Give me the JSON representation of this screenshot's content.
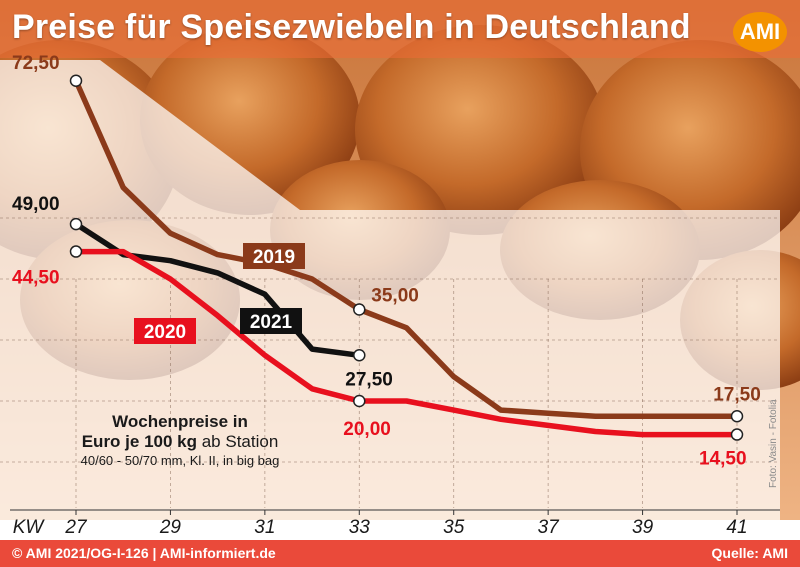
{
  "header": {
    "title": "Preise für Speisezwiebeln in Deutschland",
    "logo": "AMI"
  },
  "legend_box": {
    "line1": "Wochenpreise in",
    "line2_bold": "Euro je 100 kg",
    "line2_rest": " ab Station",
    "line3": "40/60 - 50/70 mm, Kl. II, in big bag"
  },
  "photo_credit": "Foto: Vasin - Fotolia",
  "footer": {
    "left": "© AMI 2021/OG-I-126 | AMI-informiert.de",
    "right": "Quelle: AMI"
  },
  "colors": {
    "series_2019": "#8b3a1a",
    "series_2020": "#e8101e",
    "series_2021": "#111111",
    "background_top": "#f0844d",
    "accent_footer": "#ea4a3a",
    "logo": "#f39200"
  },
  "chart_data": {
    "type": "line",
    "xlabel": "KW",
    "x_ticks": [
      "27",
      "29",
      "31",
      "33",
      "35",
      "37",
      "39",
      "41"
    ],
    "xlim": [
      27,
      41
    ],
    "ylim": [
      0,
      80
    ],
    "grid": true,
    "series": [
      {
        "name": "2019",
        "color": "#8b3a1a",
        "x": [
          27,
          28,
          29,
          30,
          31,
          32,
          33,
          34,
          35,
          36,
          37,
          38,
          39,
          40,
          41
        ],
        "values": [
          72.5,
          55,
          47.5,
          44,
          42.5,
          40,
          35,
          32,
          24,
          18.5,
          18,
          17.5,
          17.5,
          17.5,
          17.5
        ]
      },
      {
        "name": "2020",
        "color": "#e8101e",
        "x": [
          27,
          28,
          29,
          30,
          31,
          32,
          33,
          34,
          35,
          36,
          37,
          38,
          39,
          40,
          41
        ],
        "values": [
          44.5,
          44.5,
          40,
          34,
          27.5,
          22,
          20,
          20,
          18.5,
          17,
          16,
          15,
          14.5,
          14.5,
          14.5
        ]
      },
      {
        "name": "2021",
        "color": "#111111",
        "x": [
          27,
          28,
          29,
          30,
          31,
          32,
          33
        ],
        "values": [
          49,
          44,
          43,
          41,
          37.5,
          28.5,
          27.5
        ]
      }
    ],
    "annotations": [
      {
        "series": "2019",
        "x": 27,
        "text": "72,50"
      },
      {
        "series": "2019",
        "x": 33,
        "text": "35,00"
      },
      {
        "series": "2019",
        "x": 41,
        "text": "17,50"
      },
      {
        "series": "2020",
        "x": 27,
        "text": "44,50"
      },
      {
        "series": "2020",
        "x": 33,
        "text": "20,00"
      },
      {
        "series": "2020",
        "x": 41,
        "text": "14,50"
      },
      {
        "series": "2021",
        "x": 27,
        "text": "49,00"
      },
      {
        "series": "2021",
        "x": 33,
        "text": "27,50"
      }
    ]
  }
}
